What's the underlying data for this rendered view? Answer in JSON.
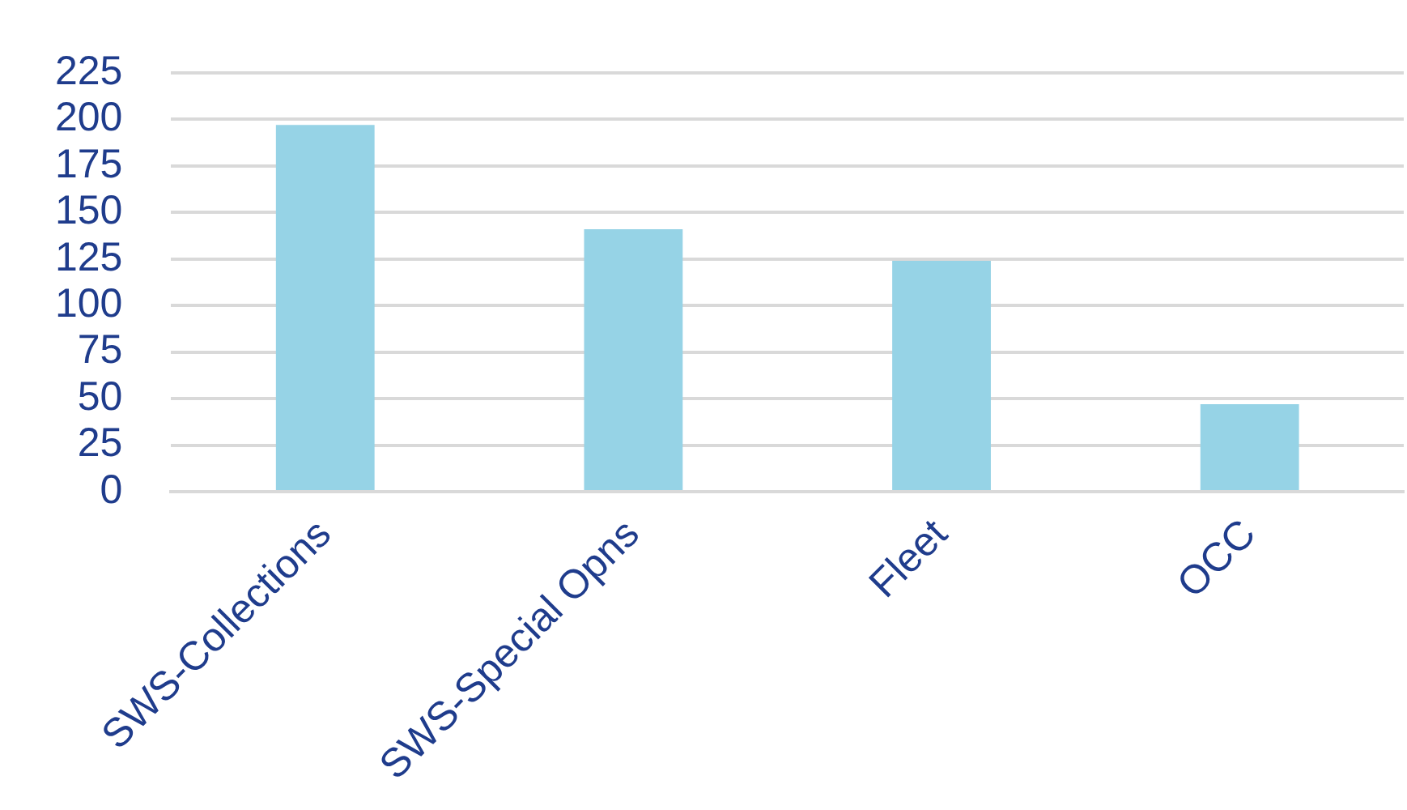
{
  "chart_data": {
    "type": "bar",
    "categories": [
      "SWS-Collections",
      "SWS-Special Opns",
      "Fleet",
      "OCC"
    ],
    "values": [
      197,
      141,
      124,
      47
    ],
    "color": "#96d3e6",
    "ylim": [
      0,
      225
    ],
    "yticks": [
      0,
      25,
      50,
      75,
      100,
      125,
      150,
      175,
      200,
      225
    ],
    "grid": "y",
    "legend": false
  }
}
